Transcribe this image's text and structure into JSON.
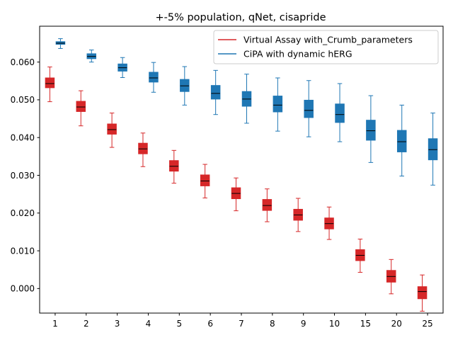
{
  "chart_data": {
    "type": "box",
    "title": "+-5% population, qNet, cisapride",
    "xlabel": "",
    "ylabel": "",
    "categories": [
      "1",
      "2",
      "3",
      "4",
      "5",
      "6",
      "7",
      "8",
      "9",
      "10",
      "15",
      "20",
      "25"
    ],
    "ylim": [
      -0.0065,
      0.0695
    ],
    "yticks": [
      0.0,
      0.01,
      0.02,
      0.03,
      0.04,
      0.05,
      0.06
    ],
    "ytick_labels": [
      "0.000",
      "0.010",
      "0.020",
      "0.030",
      "0.040",
      "0.050",
      "0.060"
    ],
    "grid": false,
    "legend_position": "upper right",
    "series": [
      {
        "name": "Virtual Assay with_Crumb_parameters",
        "color": "#d62728",
        "boxes": [
          {
            "whislo": 0.0495,
            "q1": 0.0532,
            "med": 0.0543,
            "q3": 0.0558,
            "whishi": 0.0587
          },
          {
            "whislo": 0.0431,
            "q1": 0.0469,
            "med": 0.0481,
            "q3": 0.0496,
            "whishi": 0.0524
          },
          {
            "whislo": 0.0374,
            "q1": 0.0409,
            "med": 0.0421,
            "q3": 0.0436,
            "whishi": 0.0465
          },
          {
            "whislo": 0.0323,
            "q1": 0.0357,
            "med": 0.037,
            "q3": 0.0385,
            "whishi": 0.0412
          },
          {
            "whislo": 0.0279,
            "q1": 0.0311,
            "med": 0.0324,
            "q3": 0.0339,
            "whishi": 0.0366
          },
          {
            "whislo": 0.024,
            "q1": 0.0272,
            "med": 0.0285,
            "q3": 0.0301,
            "whishi": 0.0329
          },
          {
            "whislo": 0.0206,
            "q1": 0.0238,
            "med": 0.0252,
            "q3": 0.0267,
            "whishi": 0.0293
          },
          {
            "whislo": 0.0177,
            "q1": 0.0207,
            "med": 0.022,
            "q3": 0.0236,
            "whishi": 0.0264
          },
          {
            "whislo": 0.0151,
            "q1": 0.0181,
            "med": 0.0195,
            "q3": 0.021,
            "whishi": 0.0239
          },
          {
            "whislo": 0.013,
            "q1": 0.0158,
            "med": 0.0172,
            "q3": 0.0187,
            "whishi": 0.0216
          },
          {
            "whislo": 0.0043,
            "q1": 0.0074,
            "med": 0.0088,
            "q3": 0.0103,
            "whishi": 0.0131
          },
          {
            "whislo": -0.0014,
            "q1": 0.0017,
            "med": 0.0032,
            "q3": 0.0048,
            "whishi": 0.0077
          },
          {
            "whislo": -0.006,
            "q1": -0.0027,
            "med": -0.0008,
            "q3": 0.0005,
            "whishi": 0.0036
          }
        ]
      },
      {
        "name": "CiPA with dynamic hERG",
        "color": "#1f77b4",
        "boxes": [
          {
            "whislo": 0.0636,
            "q1": 0.0647,
            "med": 0.065,
            "q3": 0.0654,
            "whishi": 0.0662
          },
          {
            "whislo": 0.06,
            "q1": 0.0609,
            "med": 0.0615,
            "q3": 0.0622,
            "whishi": 0.0632
          },
          {
            "whislo": 0.0559,
            "q1": 0.0576,
            "med": 0.0585,
            "q3": 0.0595,
            "whishi": 0.0612
          },
          {
            "whislo": 0.052,
            "q1": 0.0547,
            "med": 0.0558,
            "q3": 0.0573,
            "whishi": 0.0599
          },
          {
            "whislo": 0.0486,
            "q1": 0.0522,
            "med": 0.0537,
            "q3": 0.0554,
            "whishi": 0.0588
          },
          {
            "whislo": 0.0461,
            "q1": 0.0502,
            "med": 0.0517,
            "q3": 0.0538,
            "whishi": 0.0578
          },
          {
            "whislo": 0.0438,
            "q1": 0.0483,
            "med": 0.0502,
            "q3": 0.0522,
            "whishi": 0.0568
          },
          {
            "whislo": 0.0417,
            "q1": 0.0468,
            "med": 0.0486,
            "q3": 0.051,
            "whishi": 0.0558
          },
          {
            "whislo": 0.0402,
            "q1": 0.0453,
            "med": 0.0472,
            "q3": 0.0499,
            "whishi": 0.0551
          },
          {
            "whislo": 0.0389,
            "q1": 0.044,
            "med": 0.0461,
            "q3": 0.0489,
            "whishi": 0.0543
          },
          {
            "whislo": 0.0334,
            "q1": 0.0393,
            "med": 0.0418,
            "q3": 0.0446,
            "whishi": 0.0511
          },
          {
            "whislo": 0.0298,
            "q1": 0.0362,
            "med": 0.0389,
            "q3": 0.0419,
            "whishi": 0.0486
          },
          {
            "whislo": 0.0274,
            "q1": 0.0341,
            "med": 0.0368,
            "q3": 0.0397,
            "whishi": 0.0465
          }
        ]
      }
    ]
  }
}
